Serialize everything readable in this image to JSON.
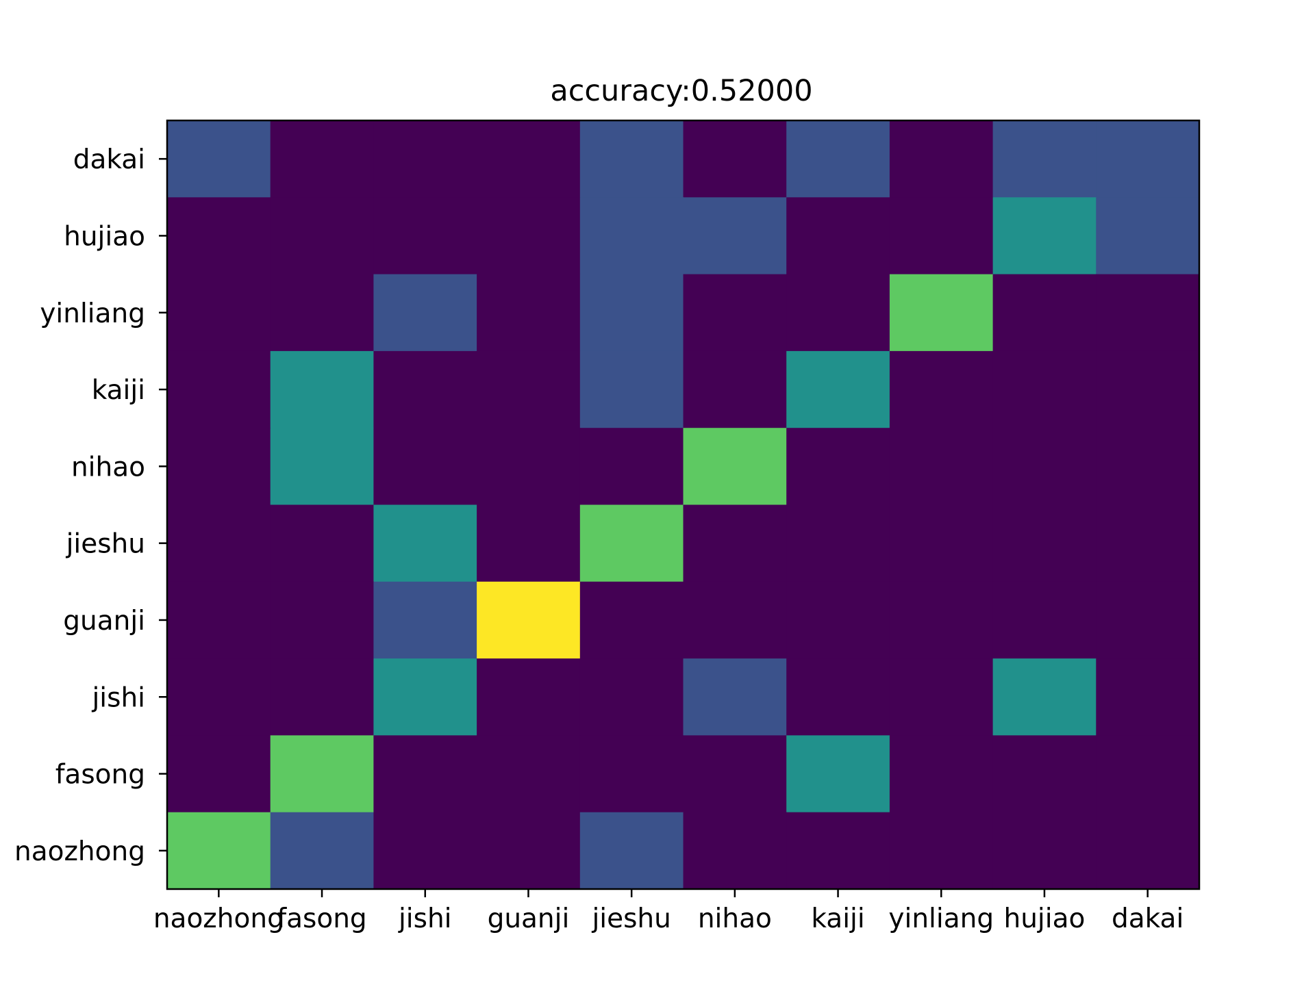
{
  "chart_data": {
    "type": "heatmap",
    "title": "accuracy:0.52000",
    "xlabel": "",
    "ylabel": "",
    "x_categories": [
      "naozhong",
      "fasong",
      "jishi",
      "guanji",
      "jieshu",
      "nihao",
      "kaiji",
      "yinliang",
      "hujiao",
      "dakai"
    ],
    "y_categories": [
      "dakai",
      "hujiao",
      "yinliang",
      "kaiji",
      "nihao",
      "jieshu",
      "guanji",
      "jishi",
      "fasong",
      "naozhong"
    ],
    "values": [
      [
        1,
        0,
        0,
        0,
        1,
        0,
        1,
        0,
        1,
        1
      ],
      [
        0,
        0,
        0,
        0,
        1,
        1,
        0,
        0,
        2,
        1
      ],
      [
        0,
        0,
        1,
        0,
        1,
        0,
        0,
        3,
        0,
        0
      ],
      [
        0,
        2,
        0,
        0,
        1,
        0,
        2,
        0,
        0,
        0
      ],
      [
        0,
        2,
        0,
        0,
        0,
        3,
        0,
        0,
        0,
        0
      ],
      [
        0,
        0,
        2,
        0,
        3,
        0,
        0,
        0,
        0,
        0
      ],
      [
        0,
        0,
        1,
        4,
        0,
        0,
        0,
        0,
        0,
        0
      ],
      [
        0,
        0,
        2,
        0,
        0,
        1,
        0,
        0,
        2,
        0
      ],
      [
        0,
        3,
        0,
        0,
        0,
        0,
        2,
        0,
        0,
        0
      ],
      [
        3,
        1,
        0,
        0,
        1,
        0,
        0,
        0,
        0,
        0
      ]
    ],
    "value_range": [
      0,
      4
    ],
    "colormap": [
      "#440154",
      "#3b528b",
      "#21918c",
      "#5ec962",
      "#fde725"
    ],
    "grid": false,
    "legend": "none"
  }
}
